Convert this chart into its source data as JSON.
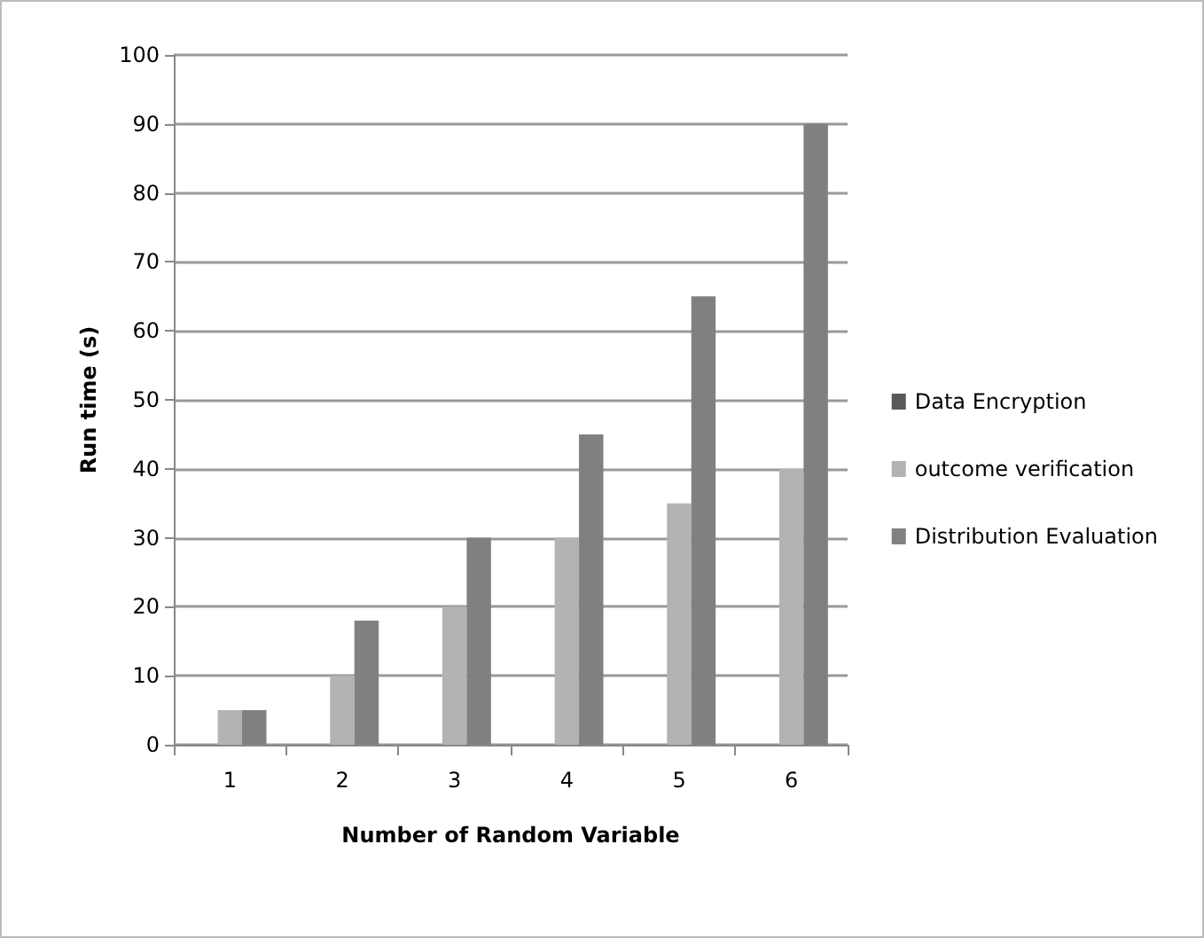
{
  "chart_data": {
    "type": "bar",
    "xlabel": "Number of Random Variable",
    "ylabel": "Run time (s)",
    "categories": [
      "1",
      "2",
      "3",
      "4",
      "5",
      "6"
    ],
    "series": [
      {
        "name": "Data Encryption",
        "color": "#595959",
        "values": [
          0,
          0,
          0,
          0,
          0,
          0
        ]
      },
      {
        "name": "outcome verification",
        "color": "#b3b3b3",
        "values": [
          5,
          10,
          20,
          30,
          35,
          40
        ]
      },
      {
        "name": "Distribution Evaluation",
        "color": "#808080",
        "values": [
          5,
          18,
          30,
          45,
          65,
          90
        ]
      }
    ],
    "ylim": [
      0,
      100
    ],
    "yticks": [
      0,
      10,
      20,
      30,
      40,
      50,
      60,
      70,
      80,
      90,
      100
    ],
    "grid": "y",
    "legend": "right"
  }
}
